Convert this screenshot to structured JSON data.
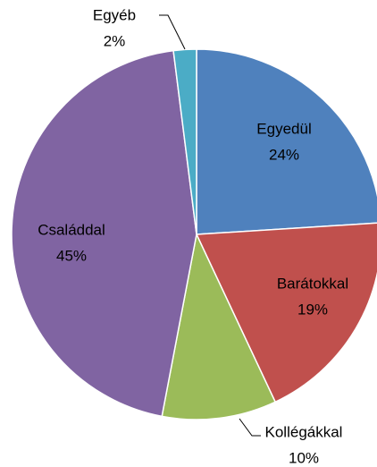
{
  "chart_data": {
    "type": "pie",
    "categories": [
      "Egyedül",
      "Barátokkal",
      "Kollégákkal",
      "Családdal",
      "Egyéb"
    ],
    "values": [
      24,
      19,
      10,
      45,
      2
    ],
    "value_labels": [
      "24%",
      "19%",
      "10%",
      "45%",
      "2%"
    ],
    "colors": [
      "#4F81BD",
      "#C0504D",
      "#9BBB59",
      "#8064A2",
      "#4BACC6"
    ]
  }
}
